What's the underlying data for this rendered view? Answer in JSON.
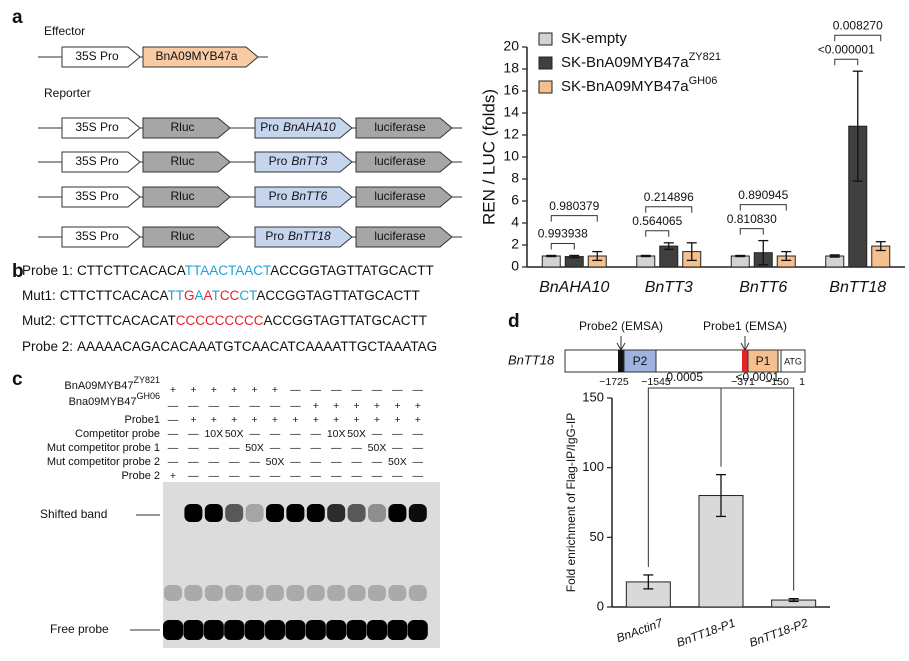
{
  "panel_labels": [
    "a",
    "b",
    "c",
    "d"
  ],
  "effector": {
    "title": "Effector",
    "promoter": "35S Pro",
    "gene": "BnA09MYB47a"
  },
  "reporter": {
    "title": "Reporter",
    "rows": [
      {
        "promoter": "35S Pro",
        "rluc": "Rluc",
        "pro": "Pro",
        "gene": "BnAHA10",
        "luc": "luciferase"
      },
      {
        "promoter": "35S Pro",
        "rluc": "Rluc",
        "pro": "Pro",
        "gene": "BnTT3",
        "luc": "luciferase"
      },
      {
        "promoter": "35S Pro",
        "rluc": "Rluc",
        "pro": "Pro",
        "gene": "BnTT6",
        "luc": "luciferase"
      },
      {
        "promoter": "35S Pro",
        "rluc": "Rluc",
        "pro": "Pro",
        "gene": "BnTT18",
        "luc": "luciferase"
      }
    ]
  },
  "sequences": [
    {
      "label": "Probe 1:",
      "segments": [
        {
          "text": "CTTCTTCACACA",
          "color": "#111111"
        },
        {
          "text": "TTAACTAACT",
          "color": "#1fa3d6"
        },
        {
          "text": "ACCGGTAGTTATGCACTT",
          "color": "#111111"
        }
      ]
    },
    {
      "label": "Mut1:",
      "segments": [
        {
          "text": "CTTCTTCACACA",
          "color": "#111111"
        },
        {
          "text": "TT",
          "color": "#1fa3d6"
        },
        {
          "text": "G",
          "color": "#e8202a"
        },
        {
          "text": "A",
          "color": "#1fa3d6"
        },
        {
          "text": "A",
          "color": "#e8202a"
        },
        {
          "text": "T",
          "color": "#1fa3d6"
        },
        {
          "text": "CC",
          "color": "#e8202a"
        },
        {
          "text": "CT",
          "color": "#1fa3d6"
        },
        {
          "text": "ACCGGTAGTTATGCACTT",
          "color": "#111111"
        }
      ]
    },
    {
      "label": "Mut2:",
      "segments": [
        {
          "text": "CTTCTTCACACAT",
          "color": "#111111"
        },
        {
          "text": "CCCCCCCCC",
          "color": "#e8202a"
        },
        {
          "text": "ACCGGTAGTTATGCACTT",
          "color": "#111111"
        }
      ]
    },
    {
      "label": "Probe 2:",
      "segments": [
        {
          "text": "AAAAACAGACACAAATGTCAACATCAAAATTGCTAAATAG",
          "color": "#111111"
        }
      ]
    }
  ],
  "gel": {
    "row_labels": [
      {
        "text": "BnA09MYB47",
        "superscript": "ZY821"
      },
      {
        "text": "Bna09MYB47",
        "superscript": "GH06"
      },
      {
        "text": "Probe1"
      },
      {
        "text": "Competitor probe"
      },
      {
        "text": "Mut competitor probe 1"
      },
      {
        "text": "Mut competitor probe 2"
      },
      {
        "text": "Probe 2"
      }
    ],
    "lanes": [
      [
        "+",
        "+",
        "+",
        "+",
        "+",
        "+",
        "—",
        "—",
        "—",
        "—",
        "—",
        "—",
        "—"
      ],
      [
        "—",
        "—",
        "—",
        "—",
        "—",
        "—",
        "—",
        "+",
        "+",
        "+",
        "+",
        "+",
        "+"
      ],
      [
        "—",
        "+",
        "+",
        "+",
        "+",
        "+",
        "+",
        "+",
        "+",
        "+",
        "+",
        "+",
        "+"
      ],
      [
        "—",
        "—",
        "10X",
        "50X",
        "—",
        "—",
        "—",
        "—",
        "10X",
        "50X",
        "—",
        "—",
        "—"
      ],
      [
        "—",
        "—",
        "—",
        "—",
        "50X",
        "—",
        "—",
        "—",
        "—",
        "—",
        "50X",
        "—",
        "—"
      ],
      [
        "—",
        "—",
        "—",
        "—",
        "—",
        "50X",
        "—",
        "—",
        "—",
        "—",
        "—",
        "50X",
        "—"
      ],
      [
        "+",
        "—",
        "—",
        "—",
        "—",
        "—",
        "—",
        "—",
        "—",
        "—",
        "—",
        "—",
        "—"
      ]
    ],
    "band_labels": [
      "Shifted band",
      "Free probe"
    ]
  },
  "promoter_map": {
    "probe_labels": [
      "Probe2 (EMSA)",
      "Probe1 (EMSA)"
    ],
    "gene": "BnTT18",
    "boxes": [
      "P2",
      "P1",
      "ATG"
    ],
    "positions": [
      "−1725",
      "−1545",
      "−371",
      "−150",
      "1"
    ]
  },
  "chart_data": [
    {
      "type": "bar",
      "y_label": "REN / LUC (folds)",
      "categories": [
        "BnAHA10",
        "BnTT3",
        "BnTT6",
        "BnTT18"
      ],
      "series": [
        {
          "name": "SK-empty",
          "color": "#d3d3d3",
          "values": [
            1,
            1,
            1,
            1
          ],
          "errors": [
            0.05,
            0.05,
            0.05,
            0.1
          ]
        },
        {
          "name": "SK-BnA09MYB47a",
          "name_superscript": "ZY821",
          "color": "#404040",
          "values": [
            0.95,
            1.9,
            1.3,
            12.8
          ],
          "errors": [
            0.1,
            0.3,
            1.1,
            5
          ]
        },
        {
          "name": "SK-BnA09MYB47a",
          "name_superscript": "GH06",
          "color": "#f5c08e",
          "values": [
            1,
            1.4,
            1,
            1.9
          ],
          "errors": [
            0.4,
            0.8,
            0.4,
            0.4
          ]
        }
      ],
      "p_values": [
        [
          "0.980379",
          "0.993938"
        ],
        [
          "0.214896",
          "0.564065"
        ],
        [
          "0.890945",
          "0.810830"
        ],
        [
          "0.008270",
          "<0.000001"
        ]
      ],
      "ylim": [
        0,
        20
      ],
      "yticks": [
        0,
        2,
        4,
        6,
        8,
        10,
        12,
        14,
        16,
        18,
        20
      ],
      "legend": "top-left"
    },
    {
      "type": "bar",
      "y_label": "Fold enrichment of Flag-IP/IgG-IP",
      "categories": [
        "BnActin7",
        "BnTT18-P1",
        "BnTT18-P2"
      ],
      "values": [
        18,
        80,
        5
      ],
      "errors": [
        5,
        15,
        1
      ],
      "color": "#d9d9d9",
      "p_values": [
        "0.0005",
        "<0.0001"
      ],
      "ylim": [
        0,
        150
      ],
      "yticks": [
        0,
        50,
        100,
        150
      ]
    }
  ]
}
